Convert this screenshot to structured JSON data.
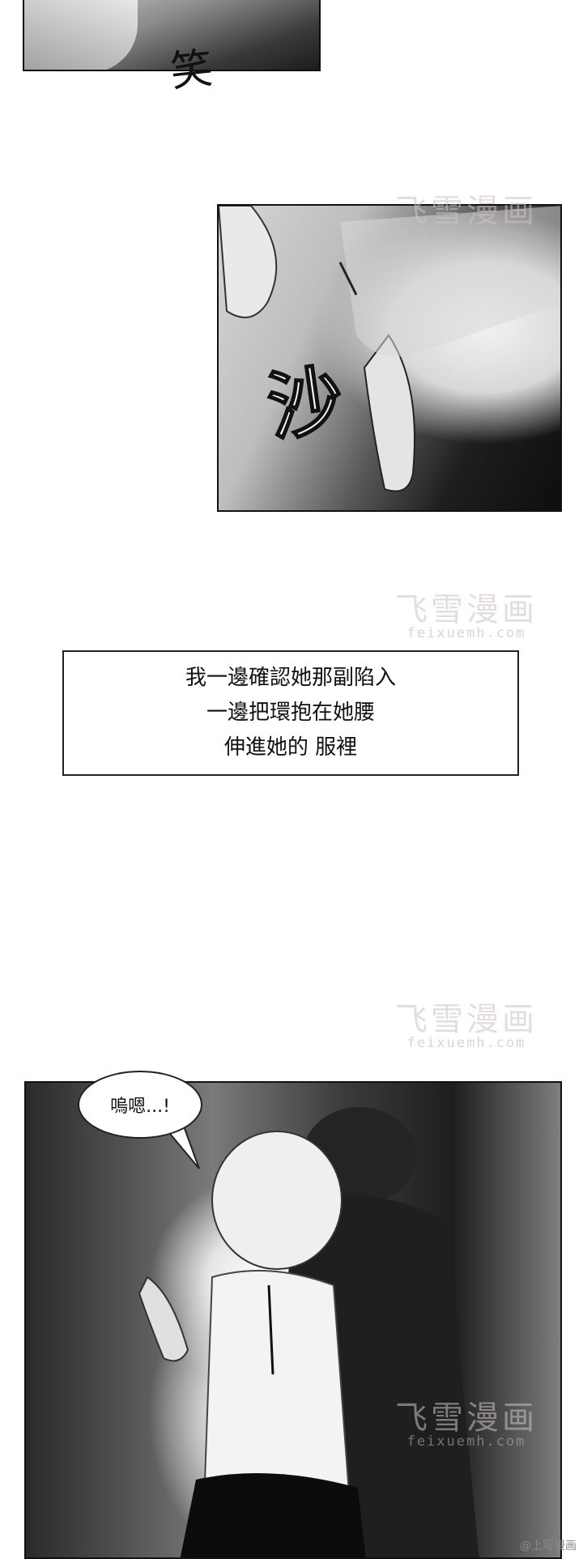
{
  "panels": {
    "top": {
      "sfx": "笑"
    },
    "hand": {
      "sfx": "沙"
    },
    "narration": {
      "lines": [
        "我一邊確認她那副陷入",
        "一邊把環抱在她腰",
        "伸進她的    服裡"
      ]
    },
    "scene": {
      "bubble_text": "嗚嗯...!"
    }
  },
  "watermark": {
    "title": "飞雪漫画",
    "url": "feixuemh.com"
  },
  "credit": "@上写漫画"
}
